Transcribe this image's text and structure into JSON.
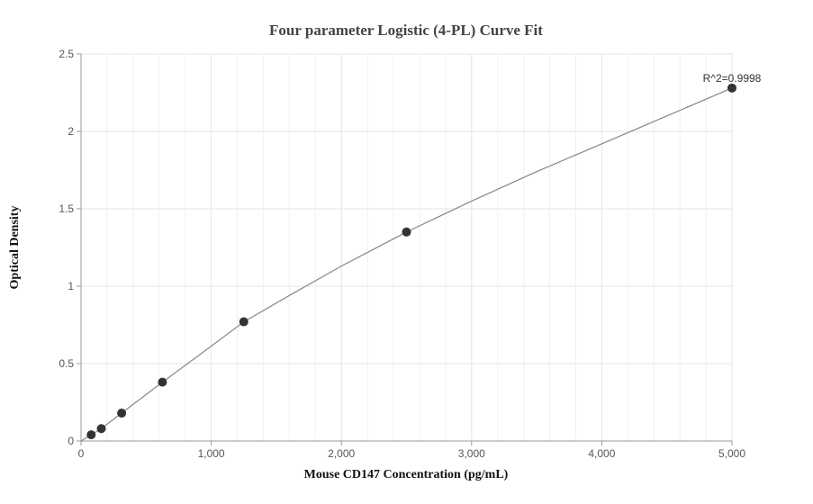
{
  "chart_data": {
    "type": "scatter",
    "title": "Four parameter Logistic (4-PL) Curve Fit",
    "xlabel": "Mouse CD147 Concentration (pg/mL)",
    "ylabel": "Optical Density",
    "xlim": [
      0,
      5000
    ],
    "ylim": [
      0,
      2.5
    ],
    "x_ticks": [
      0,
      1000,
      2000,
      3000,
      4000,
      5000
    ],
    "x_tick_labels": [
      "0",
      "1,000",
      "2,000",
      "3,000",
      "4,000",
      "5,000"
    ],
    "y_ticks": [
      0,
      0.5,
      1,
      1.5,
      2,
      2.5
    ],
    "y_tick_labels": [
      "0",
      "0.5",
      "1",
      "1.5",
      "2",
      "2.5"
    ],
    "grid": true,
    "series": [
      {
        "points": [
          {
            "x": 78,
            "y": 0.04
          },
          {
            "x": 156,
            "y": 0.08
          },
          {
            "x": 312,
            "y": 0.18
          },
          {
            "x": 625,
            "y": 0.38
          },
          {
            "x": 1250,
            "y": 0.77
          },
          {
            "x": 2500,
            "y": 1.35
          },
          {
            "x": 5000,
            "y": 2.28
          }
        ],
        "fit_curve": [
          [
            0,
            0.0
          ],
          [
            78,
            0.04
          ],
          [
            156,
            0.08
          ],
          [
            312,
            0.18
          ],
          [
            625,
            0.38
          ],
          [
            900,
            0.55
          ],
          [
            1250,
            0.77
          ],
          [
            1600,
            0.94
          ],
          [
            2000,
            1.13
          ],
          [
            2500,
            1.35
          ],
          [
            3000,
            1.55
          ],
          [
            3500,
            1.74
          ],
          [
            4000,
            1.92
          ],
          [
            4500,
            2.1
          ],
          [
            5000,
            2.28
          ]
        ]
      }
    ],
    "annotation": "R^2=0.9998",
    "colors": {
      "marker": "#333333",
      "line": "#888888",
      "grid": "#e6e6e6"
    }
  }
}
